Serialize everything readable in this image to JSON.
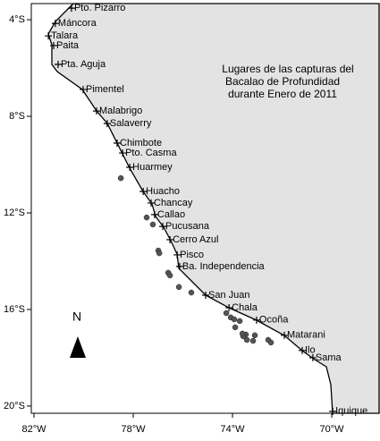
{
  "chart_data": {
    "type": "scatter",
    "title_lines": [
      "Lugares de las capturas del",
      "Bacalao de Profundidad",
      "durante Enero de 2011"
    ],
    "north_label": "N",
    "xlim": [
      -82.11,
      -68.09
    ],
    "ylim": [
      -20.3,
      -3.33
    ],
    "xticks": [
      {
        "value": -82,
        "label": "82°W"
      },
      {
        "value": -78,
        "label": "78°W"
      },
      {
        "value": -74,
        "label": "74°W"
      },
      {
        "value": -70,
        "label": "70°W"
      }
    ],
    "yticks": [
      {
        "value": -4,
        "label": "4°S"
      },
      {
        "value": -8,
        "label": "8°S"
      },
      {
        "value": -12,
        "label": "12°S"
      },
      {
        "value": -16,
        "label": "16°S"
      },
      {
        "value": -20,
        "label": "20°S"
      }
    ],
    "color": "#555555",
    "x": [
      -78.5,
      -77.46,
      -77.21,
      -76.99,
      -76.95,
      -76.59,
      -76.52,
      -76.16,
      -75.66,
      -74.25,
      -74.07,
      -73.93,
      -73.71,
      -73.46,
      -73.57,
      -73.42,
      -73.17,
      -73.1,
      -73.6,
      -72.56,
      -72.45,
      -73.89
    ],
    "y": [
      -10.56,
      -12.19,
      -12.48,
      -13.56,
      -13.67,
      -14.48,
      -14.59,
      -15.07,
      -15.3,
      -16.15,
      -16.33,
      -16.41,
      -16.48,
      -17.04,
      -17.11,
      -17.26,
      -17.3,
      -17.07,
      -17.0,
      -17.26,
      -17.37,
      -16.74
    ],
    "places": [
      {
        "name": "Pto. Pizarro",
        "lon": -80.49,
        "lat": -3.52
      },
      {
        "name": "Máncora",
        "lon": -81.14,
        "lat": -4.15
      },
      {
        "name": "Talara",
        "lon": -81.42,
        "lat": -4.67
      },
      {
        "name": "Paita",
        "lon": -81.21,
        "lat": -5.07
      },
      {
        "name": "Pta. Aguja",
        "lon": -81.03,
        "lat": -5.85
      },
      {
        "name": "Pimentel",
        "lon": -80.02,
        "lat": -6.89
      },
      {
        "name": "Malabrigo",
        "lon": -79.48,
        "lat": -7.78
      },
      {
        "name": "Salaverry",
        "lon": -79.05,
        "lat": -8.3
      },
      {
        "name": "Chimbote",
        "lon": -78.65,
        "lat": -9.11
      },
      {
        "name": "Pto. Casma",
        "lon": -78.43,
        "lat": -9.52
      },
      {
        "name": "Huarmey",
        "lon": -78.14,
        "lat": -10.11
      },
      {
        "name": "Huacho",
        "lon": -77.6,
        "lat": -11.11
      },
      {
        "name": "Chancay",
        "lon": -77.28,
        "lat": -11.59
      },
      {
        "name": "Callao",
        "lon": -77.14,
        "lat": -12.07
      },
      {
        "name": "Pucusana",
        "lon": -76.81,
        "lat": -12.56
      },
      {
        "name": "Cerro Azul",
        "lon": -76.52,
        "lat": -13.11
      },
      {
        "name": "Pisco",
        "lon": -76.23,
        "lat": -13.74
      },
      {
        "name": "Ba. Independencia",
        "lon": -76.13,
        "lat": -14.22
      },
      {
        "name": "San Juan",
        "lon": -75.08,
        "lat": -15.41
      },
      {
        "name": "Chala",
        "lon": -74.14,
        "lat": -15.93
      },
      {
        "name": "Ocoña",
        "lon": -73.03,
        "lat": -16.44
      },
      {
        "name": "Matarani",
        "lon": -71.91,
        "lat": -17.07
      },
      {
        "name": "Ilo",
        "lon": -71.19,
        "lat": -17.7
      },
      {
        "name": "Sama",
        "lon": -70.76,
        "lat": -18.0
      },
      {
        "name": "Iquique",
        "lon": -69.96,
        "lat": -20.22
      }
    ]
  }
}
